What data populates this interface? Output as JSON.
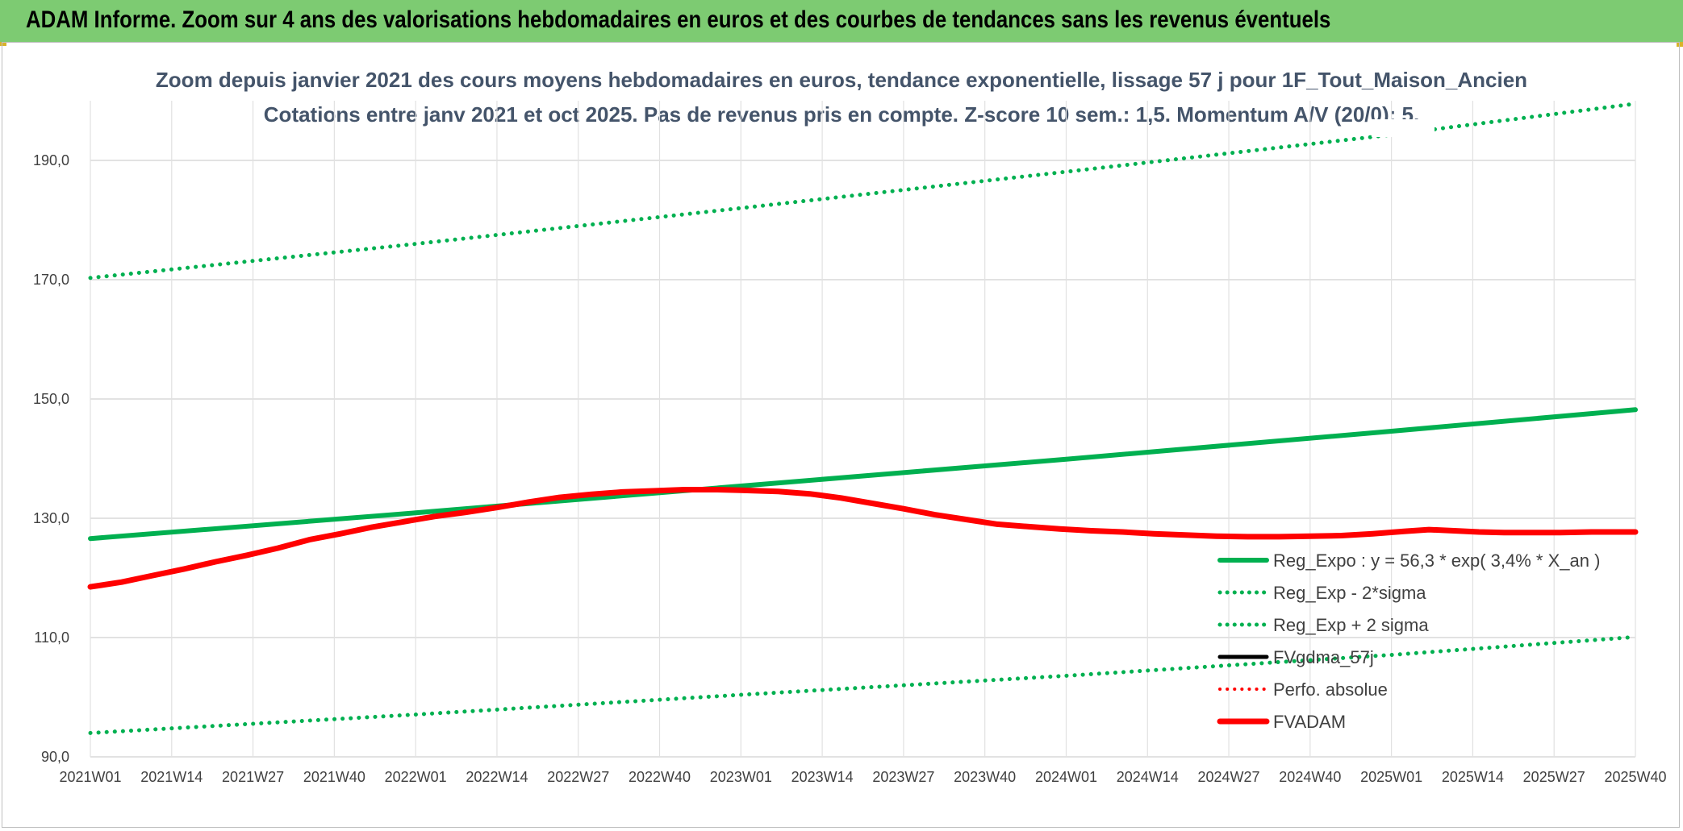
{
  "header": {
    "title": "ADAM Informe. Zoom sur 4 ans des valorisations hebdomadaires en euros et des courbes de tendances sans les revenus éventuels"
  },
  "chart_data": {
    "type": "line",
    "title": "Zoom depuis janvier 2021 des cours moyens hebdomadaires en euros, tendance exponentielle, lissage 57 j pour 1F_Tout_Maison_Ancien",
    "subtitle": "Cotations entre janv 2021 et oct 2025. Pas de revenus pris en compte. Z-score 10 sem.: 1,5. Momentum A/V (20/0): 5.",
    "xlabel": "",
    "ylabel": "",
    "ylim": [
      90,
      200
    ],
    "yticks": [
      90,
      110,
      130,
      150,
      170,
      190
    ],
    "ytick_labels": [
      "90,0",
      "110,0",
      "130,0",
      "150,0",
      "170,0",
      "190,0"
    ],
    "x_range": [
      0,
      247
    ],
    "x_ticks": [
      {
        "x": 0,
        "label": "2021W01"
      },
      {
        "x": 13,
        "label": "2021W14"
      },
      {
        "x": 26,
        "label": "2021W27"
      },
      {
        "x": 39,
        "label": "2021W40"
      },
      {
        "x": 52,
        "label": "2022W01"
      },
      {
        "x": 65,
        "label": "2022W14"
      },
      {
        "x": 78,
        "label": "2022W27"
      },
      {
        "x": 91,
        "label": "2022W40"
      },
      {
        "x": 104,
        "label": "2023W01"
      },
      {
        "x": 117,
        "label": "2023W14"
      },
      {
        "x": 130,
        "label": "2023W27"
      },
      {
        "x": 143,
        "label": "2023W40"
      },
      {
        "x": 156,
        "label": "2024W01"
      },
      {
        "x": 169,
        "label": "2024W14"
      },
      {
        "x": 182,
        "label": "2024W27"
      },
      {
        "x": 195,
        "label": "2024W40"
      },
      {
        "x": 208,
        "label": "2025W01"
      },
      {
        "x": 221,
        "label": "2025W14"
      },
      {
        "x": 234,
        "label": "2025W27"
      },
      {
        "x": 247,
        "label": "2025W40"
      }
    ],
    "legend_position": "bottom-right",
    "series": [
      {
        "name": "Reg_Expo : y = 56,3 * exp( 3,4% *  X_an )",
        "style": "solid",
        "color": "#00b050",
        "width": 6,
        "x": [
          0,
          52,
          104,
          156,
          208,
          247
        ],
        "y": [
          126.6,
          130.9,
          135.4,
          139.9,
          144.6,
          148.2
        ]
      },
      {
        "name": "Reg_Exp - 2*sigma",
        "style": "dotted",
        "color": "#00b050",
        "width": 5,
        "x": [
          0,
          52,
          104,
          156,
          208,
          247
        ],
        "y": [
          94.0,
          97.1,
          100.4,
          103.6,
          107.1,
          110.1
        ]
      },
      {
        "name": "Reg_Exp + 2 sigma",
        "style": "dotted",
        "color": "#00b050",
        "width": 5,
        "x": [
          0,
          52,
          104,
          156,
          208,
          247
        ],
        "y": [
          170.3,
          176.0,
          182.0,
          188.1,
          194.3,
          199.5
        ]
      },
      {
        "name": "FVgdma_57j",
        "style": "solid",
        "color": "#000000",
        "width": 5,
        "x": [
          0,
          5,
          10,
          15,
          20,
          25,
          30,
          35,
          40,
          45,
          50,
          55,
          60,
          65,
          70,
          75,
          80,
          85,
          90,
          95,
          100,
          104,
          110,
          115,
          120,
          125,
          130,
          135,
          140,
          145,
          150,
          155,
          160,
          165,
          170,
          175,
          180,
          185,
          190,
          195,
          200,
          205,
          210,
          214,
          218,
          222,
          226,
          230,
          235,
          240,
          247
        ],
        "y": [
          118.5,
          119.3,
          120.4,
          121.5,
          122.7,
          123.8,
          125.0,
          126.4,
          127.4,
          128.5,
          129.4,
          130.3,
          131.0,
          131.8,
          132.7,
          133.5,
          134.0,
          134.4,
          134.6,
          134.8,
          134.8,
          134.7,
          134.5,
          134.1,
          133.4,
          132.5,
          131.6,
          130.6,
          129.8,
          129.0,
          128.6,
          128.2,
          127.9,
          127.7,
          127.4,
          127.2,
          127.0,
          126.9,
          126.9,
          127.0,
          127.1,
          127.4,
          127.8,
          128.1,
          127.9,
          127.7,
          127.6,
          127.6,
          127.6,
          127.7,
          127.7
        ]
      },
      {
        "name": "Perfo. absolue",
        "style": "dotted",
        "color": "#ff0000",
        "width": 4,
        "x": [],
        "y": []
      },
      {
        "name": "FVADAM",
        "style": "solid",
        "color": "#ff0000",
        "width": 7,
        "x": [
          0,
          5,
          10,
          15,
          20,
          25,
          30,
          35,
          40,
          45,
          50,
          55,
          60,
          65,
          70,
          75,
          80,
          85,
          90,
          95,
          100,
          104,
          110,
          115,
          120,
          125,
          130,
          135,
          140,
          145,
          150,
          155,
          160,
          165,
          170,
          175,
          180,
          185,
          190,
          195,
          200,
          205,
          210,
          214,
          218,
          222,
          226,
          230,
          235,
          240,
          247
        ],
        "y": [
          118.5,
          119.3,
          120.4,
          121.5,
          122.7,
          123.8,
          125.0,
          126.4,
          127.4,
          128.5,
          129.4,
          130.3,
          131.0,
          131.8,
          132.7,
          133.5,
          134.0,
          134.4,
          134.6,
          134.8,
          134.8,
          134.7,
          134.5,
          134.1,
          133.4,
          132.5,
          131.6,
          130.6,
          129.8,
          129.0,
          128.6,
          128.2,
          127.9,
          127.7,
          127.4,
          127.2,
          127.0,
          126.9,
          126.9,
          127.0,
          127.1,
          127.4,
          127.8,
          128.1,
          127.9,
          127.7,
          127.6,
          127.6,
          127.6,
          127.7,
          127.7
        ]
      }
    ]
  }
}
